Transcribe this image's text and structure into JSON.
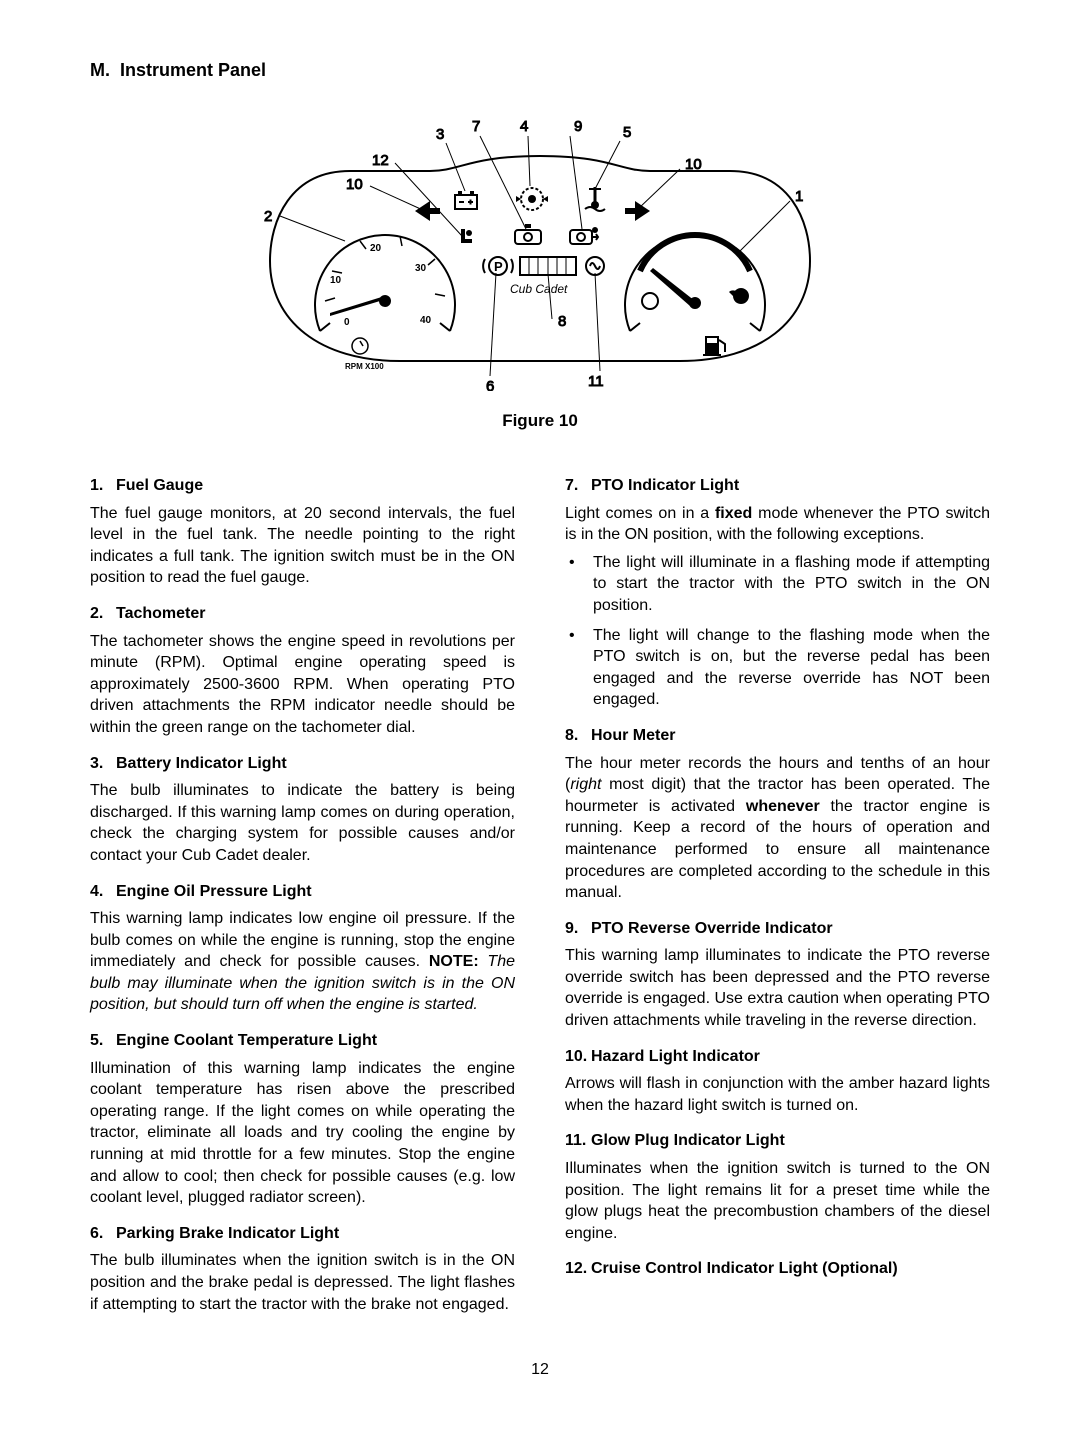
{
  "section_title_prefix": "M.",
  "section_title": "Instrument Panel",
  "figure_caption": "Figure 10",
  "page_number": "12",
  "diagram": {
    "callout_numbers": [
      "1",
      "2",
      "3",
      "4",
      "5",
      "6",
      "7",
      "8",
      "9",
      "10",
      "10",
      "11",
      "12"
    ],
    "tach_labels": [
      "0",
      "10",
      "20",
      "30",
      "40"
    ],
    "tach_sub": "RPM X100",
    "brand": "Cub Cadet",
    "icon_labels": {
      "parking": "P"
    },
    "stroke_color": "#000000",
    "bg_color": "#ffffff"
  },
  "left_items": [
    {
      "num": "1.",
      "title": "Fuel Gauge",
      "body": "The fuel gauge monitors, at 20 second intervals, the fuel level in the fuel tank. The needle pointing to the right indicates a full tank. The ignition switch must be in the ON position to read the fuel gauge."
    },
    {
      "num": "2.",
      "title": "Tachometer",
      "body": "The tachometer shows the engine speed in revolutions per minute (RPM). Optimal engine operating speed is approximately 2500-3600 RPM. When operating PTO driven attachments the RPM indicator needle should be within the green range on the tachometer dial."
    },
    {
      "num": "3.",
      "title": "Battery Indicator Light",
      "body": "The bulb illuminates to indicate the battery is being discharged. If this warning lamp comes on during operation, check the charging system for possible causes and/or contact your Cub Cadet dealer."
    },
    {
      "num": "4.",
      "title": "Engine Oil Pressure Light",
      "body_html": "This warning lamp indicates low engine oil pressure. If the bulb comes on while the engine is running, stop the engine immediately and check for possible causes. <span class=\"bold\">NOTE:</span> <span class=\"ital\">The bulb may illuminate when the ignition switch is in the ON position, but should turn off when the engine is started.</span>"
    },
    {
      "num": "5.",
      "title": "Engine Coolant Temperature Light",
      "body": "Illumination of this warning lamp indicates the engine coolant temperature has risen above the prescribed operating range. If the light comes on while operating the tractor, eliminate all loads and try cooling the engine by running at mid throttle for a few minutes. Stop the engine and allow to cool; then check for possible causes (e.g. low coolant level, plugged radiator screen)."
    },
    {
      "num": "6.",
      "title": "Parking Brake Indicator Light",
      "body": "The bulb illuminates when the ignition switch is in the ON position and the brake pedal is depressed. The light flashes if attempting to start the tractor with the brake not engaged."
    }
  ],
  "right_items": [
    {
      "num": "7.",
      "title": "PTO Indicator Light",
      "body_html": "Light comes on in a <span class=\"bold\">fixed</span> mode whenever the PTO switch is in the ON position, with the following exceptions.",
      "bullets": [
        "The light will illuminate in a flashing mode if attempting to start the tractor with the PTO switch in the ON position.",
        "The light will change to the flashing mode when the PTO switch is on, but the reverse pedal has been engaged and the reverse override has NOT been engaged."
      ]
    },
    {
      "num": "8.",
      "title": "Hour Meter",
      "body_html": "The hour meter records the hours and tenths of an hour (<span class=\"ital\">right</span> most digit) that the tractor has been operated. The hourmeter is activated <span class=\"bold\">whenever</span> the tractor engine is running. Keep a record of the hours of operation and maintenance performed to ensure all maintenance procedures are completed according to the schedule in this manual."
    },
    {
      "num": "9.",
      "title": "PTO Reverse Override Indicator",
      "body": "This warning lamp illuminates to indicate the PTO reverse override switch has been depressed and the PTO reverse override is engaged. Use extra caution when operating PTO driven attachments while traveling in the reverse direction."
    },
    {
      "num": "10.",
      "title": "Hazard Light Indicator",
      "body": "Arrows will flash in conjunction with the amber hazard lights when the hazard light switch is turned on."
    },
    {
      "num": "11.",
      "title": "Glow Plug Indicator Light",
      "body": "Illuminates when the ignition switch is turned to the ON position. The light remains lit for a preset time while the glow plugs heat the precombustion chambers of the diesel engine."
    },
    {
      "num": "12.",
      "title": "Cruise Control Indicator Light (Optional)",
      "body": ""
    }
  ]
}
